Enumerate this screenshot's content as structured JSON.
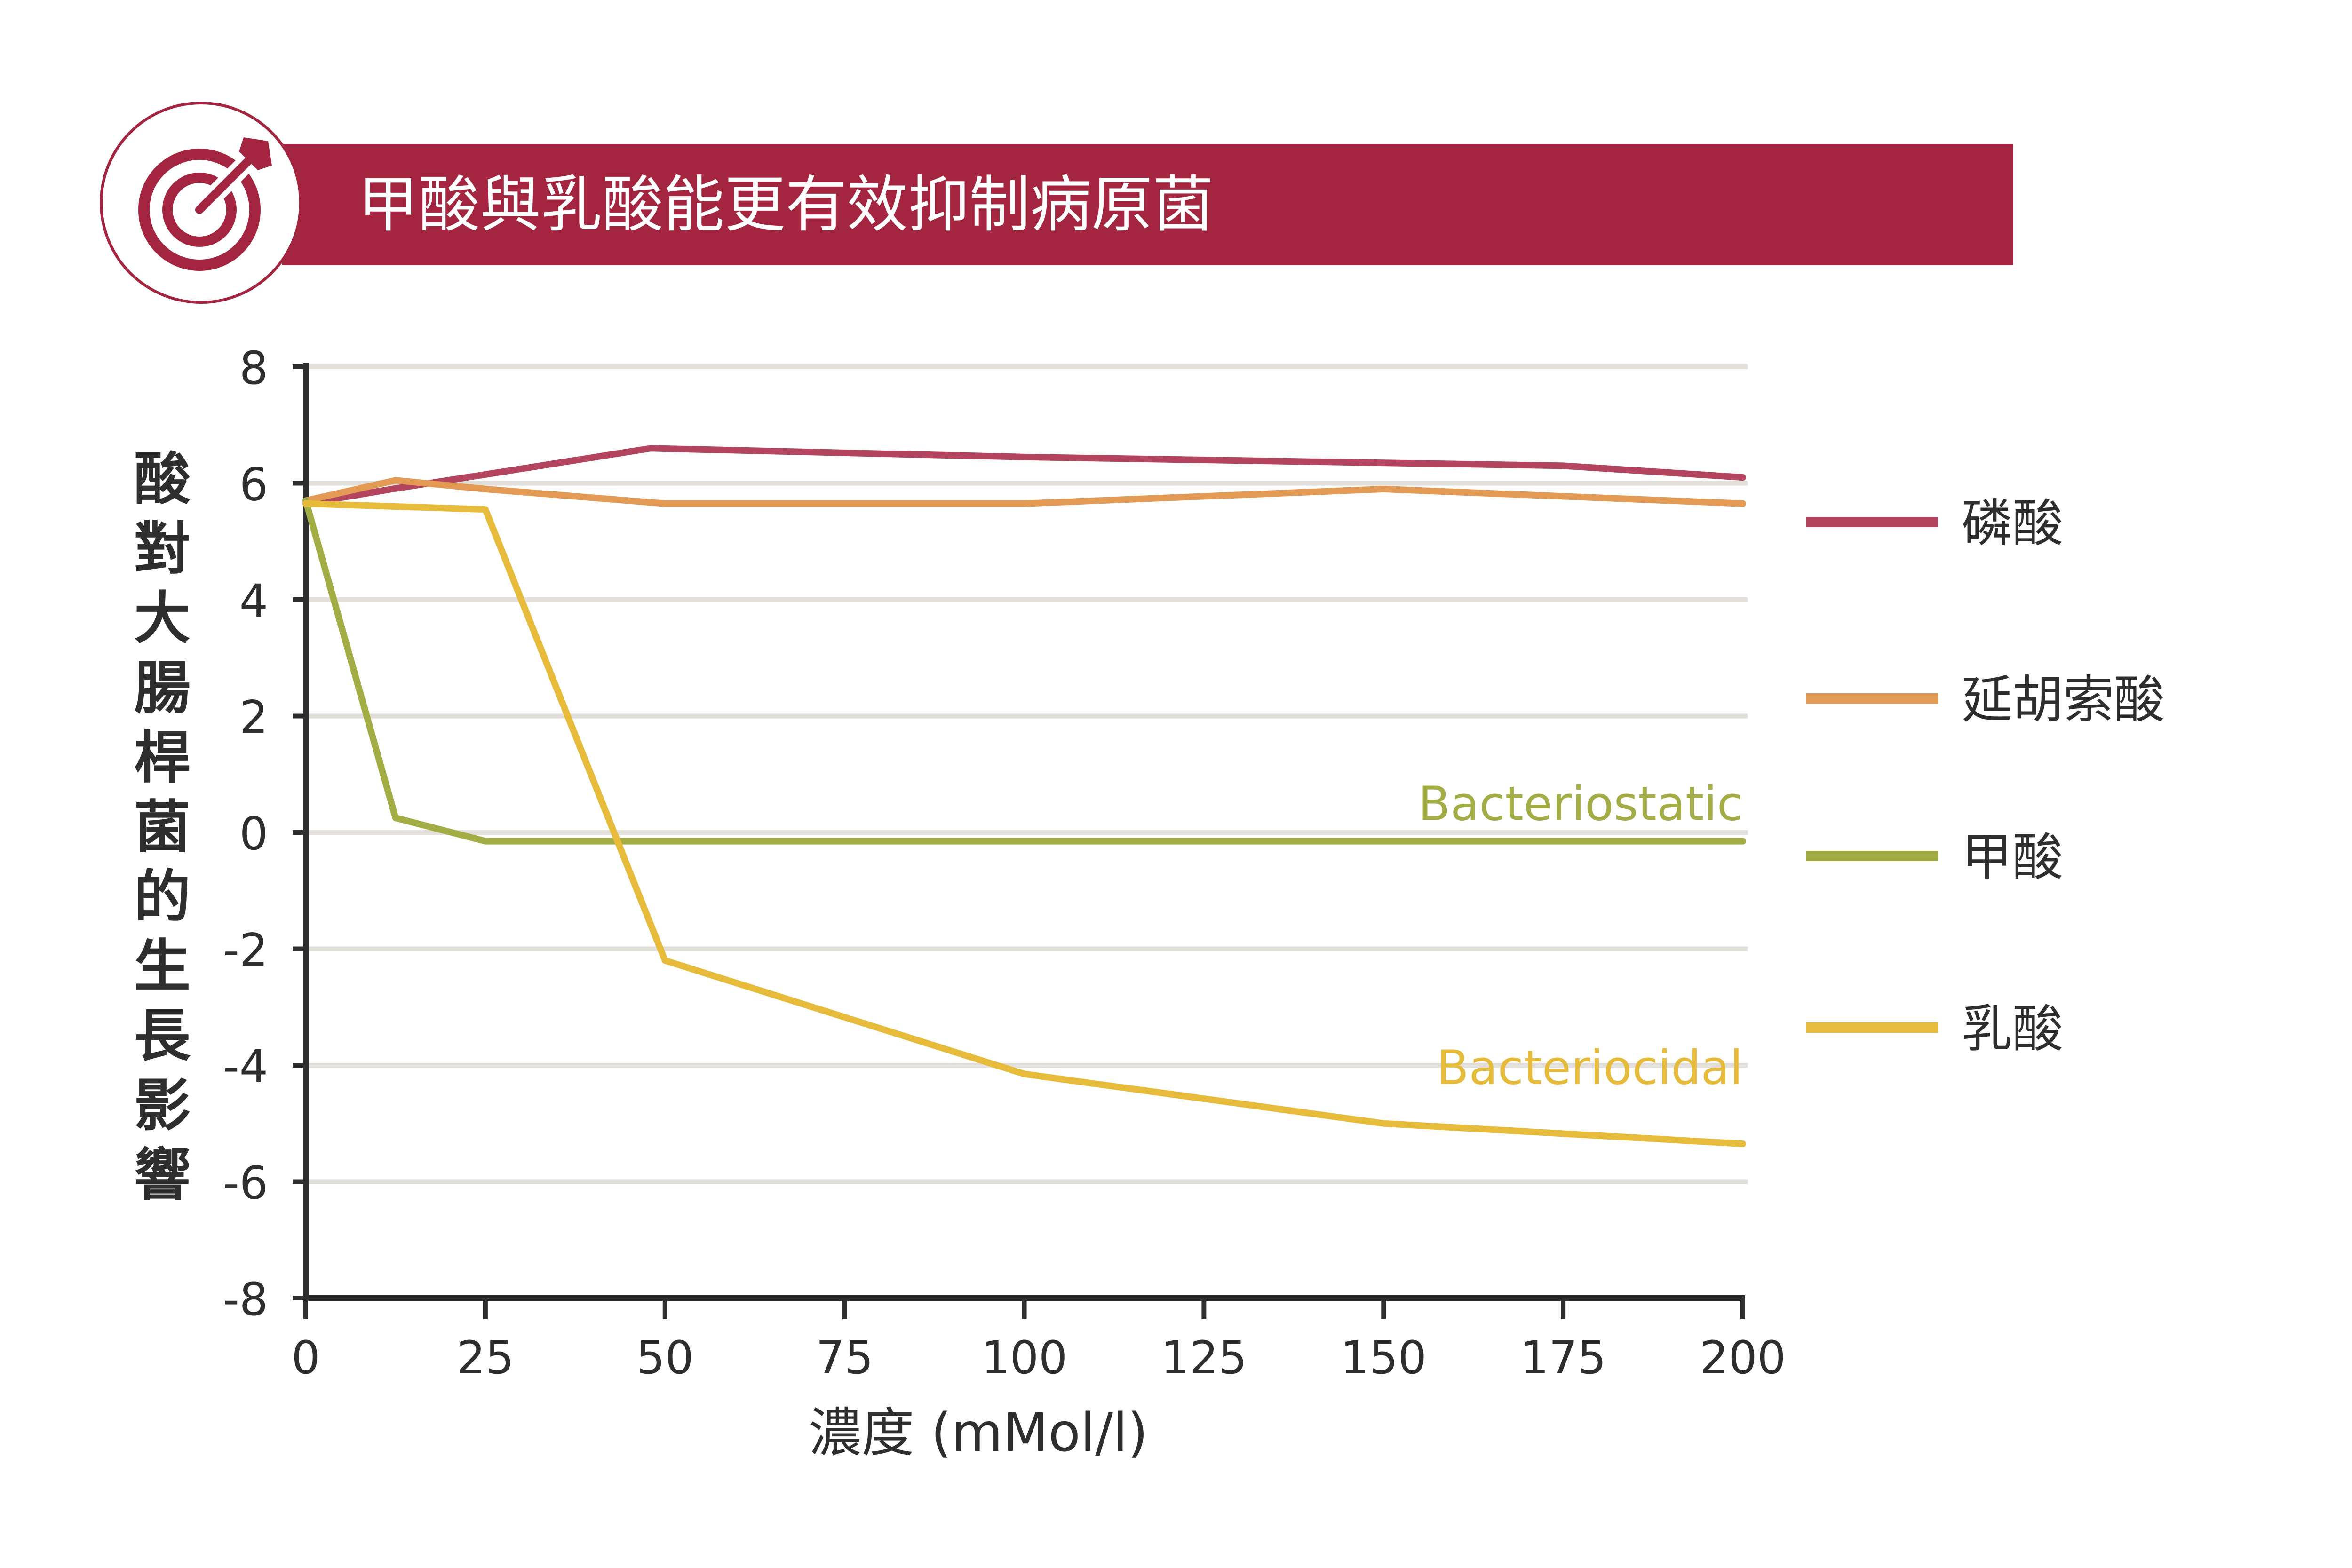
{
  "header": {
    "title": "甲酸與乳酸能更有效抑制病原菌",
    "icon": "target-with-arrow-icon",
    "bar_color": "#a3253f"
  },
  "chart_data": {
    "type": "line",
    "ylabel": "酸對大腸桿菌的生長影響",
    "xlabel": "濃度 (mMol/l)",
    "xlim": [
      0,
      200
    ],
    "ylim": [
      -8,
      8
    ],
    "x_ticks": [
      "0",
      "25",
      "50",
      "75",
      "100",
      "125",
      "150",
      "175",
      "200"
    ],
    "y_ticks": [
      "8",
      "6",
      "4",
      "2",
      "0",
      "-2",
      "-4",
      "-6",
      "-8"
    ],
    "grid": true,
    "legend_position": "right",
    "series": [
      {
        "name": "磷酸",
        "color": "#b3465e",
        "x": [
          0,
          12,
          25,
          48,
          100,
          150,
          175,
          200
        ],
        "y": [
          5.65,
          5.9,
          6.15,
          6.6,
          6.45,
          6.35,
          6.3,
          6.1
        ]
      },
      {
        "name": "延胡索酸",
        "color": "#e29a55",
        "x": [
          0,
          12.5,
          25,
          50,
          100,
          150,
          200
        ],
        "y": [
          5.7,
          6.05,
          5.9,
          5.65,
          5.65,
          5.9,
          5.65
        ]
      },
      {
        "name": "甲酸",
        "color": "#a3ad45",
        "x": [
          0,
          12.5,
          25,
          50,
          100,
          150,
          200
        ],
        "y": [
          5.7,
          0.25,
          -0.15,
          -0.15,
          -0.15,
          -0.15,
          -0.15
        ]
      },
      {
        "name": "乳酸",
        "color": "#e6bb3c",
        "x": [
          0,
          12.5,
          25,
          50,
          100,
          150,
          200
        ],
        "y": [
          5.65,
          5.6,
          5.55,
          -2.2,
          -4.15,
          -5.0,
          -5.35
        ]
      }
    ],
    "annotations": [
      {
        "text": "Bacteriostatic",
        "color": "#a3ad45"
      },
      {
        "text": "Bacteriocidal",
        "color": "#e6bb3c"
      }
    ]
  }
}
